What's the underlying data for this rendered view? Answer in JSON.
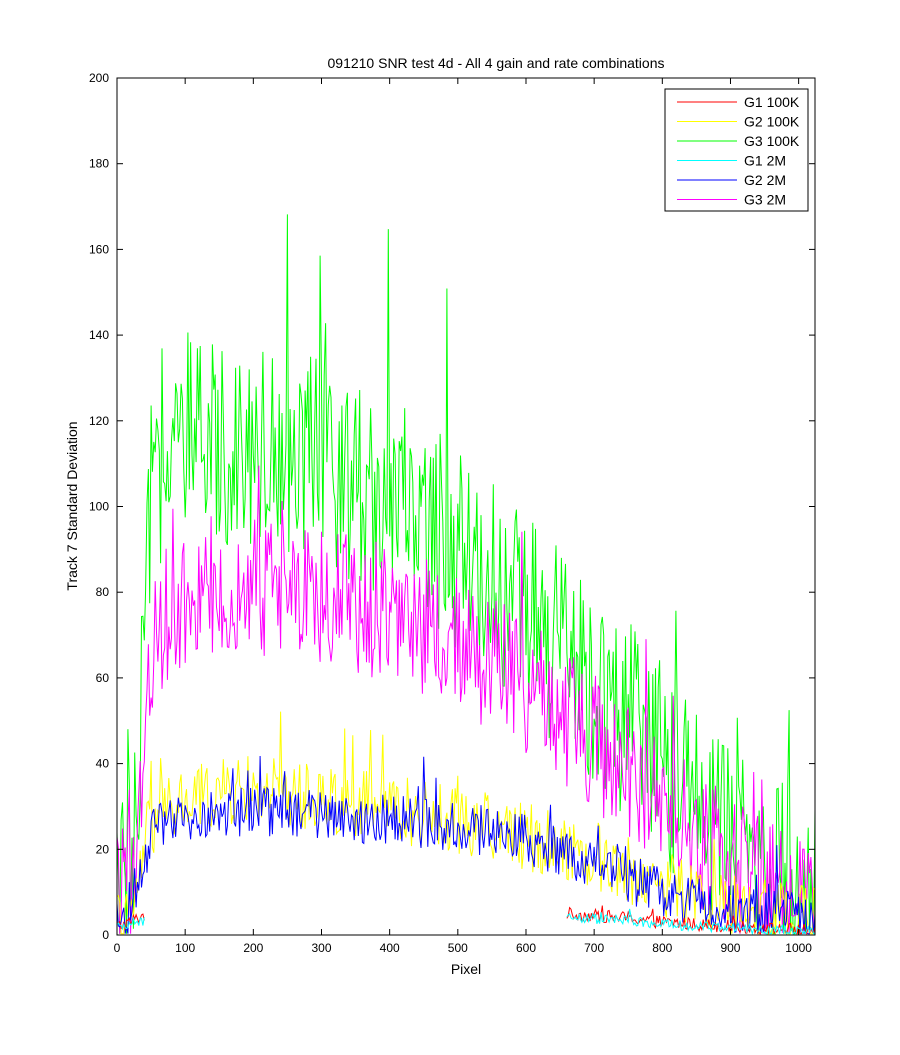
{
  "chart_data": {
    "type": "line",
    "title": "091210  SNR test 4d - All 4 gain and rate combinations",
    "xlabel": "Pixel",
    "ylabel": "Track 7 Standard Deviation",
    "xlim": [
      0,
      1024
    ],
    "ylim": [
      0,
      200
    ],
    "xticks": [
      "0",
      "100",
      "200",
      "300",
      "400",
      "500",
      "600",
      "700",
      "800",
      "900",
      "1000"
    ],
    "yticks": [
      "0",
      "20",
      "40",
      "60",
      "80",
      "100",
      "120",
      "140",
      "160",
      "180",
      "200"
    ],
    "grid": false,
    "legend_position": "top-right",
    "series": [
      {
        "name": "G1 100K",
        "color": "#ff0000",
        "segments": [
          [
            0,
            40
          ],
          [
            660,
            1024
          ]
        ],
        "x": [
          0,
          10,
          20,
          30,
          40,
          660,
          700,
          750,
          800,
          850,
          900,
          950,
          1000,
          1024
        ],
        "y": [
          2,
          2.5,
          3,
          4,
          4.5,
          5,
          4.5,
          4,
          3,
          2.5,
          2,
          1.5,
          1.2,
          1
        ],
        "noise": 1.5
      },
      {
        "name": "G2 100K",
        "color": "#ffff00",
        "x": [
          0,
          20,
          30,
          40,
          60,
          100,
          150,
          200,
          250,
          300,
          350,
          400,
          450,
          500,
          550,
          600,
          650,
          700,
          750,
          800,
          850,
          900,
          950,
          1000,
          1024
        ],
        "y": [
          2,
          4,
          10,
          22,
          28,
          31,
          33,
          34,
          33,
          32,
          31,
          30,
          28,
          27,
          25,
          23,
          21,
          18,
          15,
          12,
          9,
          7,
          5,
          4,
          3
        ],
        "noise": 8
      },
      {
        "name": "G3 100K",
        "color": "#00ff00",
        "x": [
          0,
          10,
          20,
          30,
          40,
          50,
          60,
          80,
          100,
          150,
          200,
          250,
          300,
          350,
          400,
          450,
          500,
          550,
          600,
          650,
          700,
          750,
          800,
          850,
          900,
          950,
          1000,
          1024
        ],
        "y": [
          10,
          9,
          14,
          22,
          70,
          100,
          110,
          112,
          113,
          115,
          115,
          113,
          110,
          106,
          102,
          97,
          90,
          83,
          75,
          66,
          58,
          50,
          40,
          32,
          22,
          15,
          10,
          8
        ],
        "noise": 24
      },
      {
        "name": "G1 2M",
        "color": "#00ffff",
        "segments": [
          [
            0,
            40
          ],
          [
            660,
            1024
          ]
        ],
        "x": [
          0,
          10,
          20,
          30,
          40,
          660,
          700,
          750,
          800,
          850,
          900,
          950,
          1000,
          1024
        ],
        "y": [
          1.5,
          2,
          2.5,
          3,
          3.5,
          4,
          3.8,
          3.3,
          2.6,
          2,
          1.6,
          1.2,
          1,
          0.8
        ],
        "noise": 1.2
      },
      {
        "name": "G2 2M",
        "color": "#0000ff",
        "x": [
          0,
          20,
          30,
          40,
          50,
          100,
          150,
          200,
          250,
          300,
          350,
          400,
          450,
          500,
          550,
          600,
          650,
          700,
          750,
          800,
          850,
          900,
          950,
          1000,
          1024
        ],
        "y": [
          3,
          4,
          8,
          18,
          24,
          27,
          28,
          29,
          29,
          28,
          27,
          27,
          26,
          25,
          24,
          22,
          19,
          16,
          13,
          10,
          8,
          6,
          5,
          4,
          3
        ],
        "noise": 6
      },
      {
        "name": "G3 2M",
        "color": "#ff00ff",
        "x": [
          0,
          10,
          20,
          30,
          40,
          50,
          60,
          80,
          100,
          150,
          200,
          250,
          300,
          350,
          400,
          450,
          500,
          550,
          600,
          650,
          700,
          750,
          800,
          850,
          900,
          950,
          1000,
          1024
        ],
        "y": [
          10,
          9,
          12,
          20,
          45,
          65,
          72,
          76,
          78,
          80,
          81,
          80,
          79,
          77,
          75,
          72,
          68,
          63,
          58,
          52,
          45,
          38,
          30,
          23,
          16,
          11,
          8,
          6
        ],
        "noise": 16
      }
    ]
  }
}
